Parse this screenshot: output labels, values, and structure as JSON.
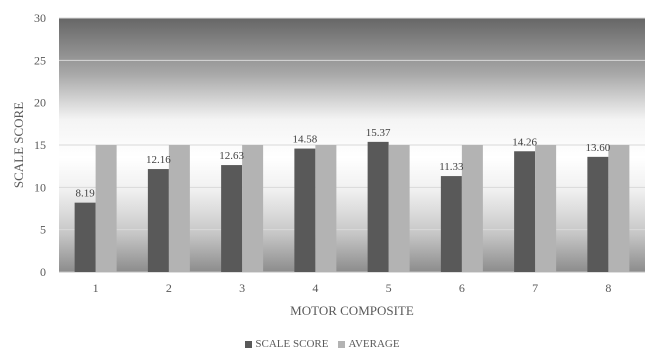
{
  "chart_data": {
    "type": "bar",
    "categories": [
      "1",
      "2",
      "3",
      "4",
      "5",
      "6",
      "7",
      "8"
    ],
    "series": [
      {
        "name": "SCALE SCORE",
        "values": [
          8.19,
          12.16,
          12.63,
          14.58,
          15.37,
          11.33,
          14.26,
          13.6
        ],
        "labels": [
          "8.19",
          "12.16",
          "12.63",
          "14.58",
          "15.37",
          "11.33",
          "14.26",
          "13.60"
        ],
        "color": "#595959"
      },
      {
        "name": "AVERAGE",
        "values": [
          15,
          15,
          15,
          15,
          15,
          15,
          15,
          15
        ],
        "color": "#b3b3b3"
      }
    ],
    "yticks": [
      0,
      5,
      10,
      15,
      20,
      25,
      30
    ],
    "ylim": [
      0,
      30
    ],
    "xlabel": "MOTOR COMPOSITE",
    "ylabel": "SCALE SCORE",
    "grid": true,
    "legend_position": "bottom"
  }
}
